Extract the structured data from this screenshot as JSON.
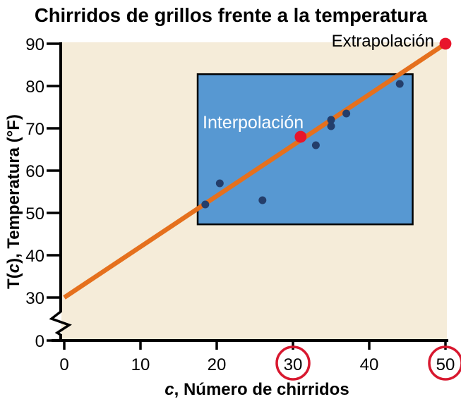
{
  "title": "Chirridos de grillos frente a la temperatura",
  "labels": {
    "interpolation": "Interpolación",
    "extrapolation": "Extrapolación",
    "x_axis_parts": [
      "c",
      ", Número de chirridos"
    ],
    "y_axis_parts": [
      "T(",
      "c",
      "), Temperatura (°F)"
    ]
  },
  "colors": {
    "plot_bg": "#f5ecd9",
    "box_fill": "#5798d2",
    "box_stroke": "#000000",
    "trend_line": "#e5701d",
    "data_point": "#243e6b",
    "highlight_point": "#e8152b",
    "tick_circle": "#d8182f",
    "axis": "#000000",
    "interpolation_label_color": "#ffffff",
    "extrapolation_label_color": "#000000"
  },
  "chart_data": {
    "type": "scatter",
    "title": "Chirridos de grillos frente a la temperatura",
    "xlabel": "c, Número de chirridos",
    "ylabel": "T(c), Temperatura (°F)",
    "xlim": [
      0,
      50
    ],
    "ylim": [
      0,
      90
    ],
    "y_axis_break_between": [
      0,
      30
    ],
    "grid": false,
    "legend": "none",
    "x_ticks": [
      0,
      10,
      20,
      30,
      40,
      50
    ],
    "y_ticks": [
      0,
      30,
      40,
      50,
      60,
      70,
      80,
      90
    ],
    "circled_x_ticks": [
      30,
      50
    ],
    "points": [
      [
        18.5,
        52
      ],
      [
        20.4,
        57
      ],
      [
        26,
        53
      ],
      [
        33,
        66
      ],
      [
        35,
        70.5
      ],
      [
        35,
        72
      ],
      [
        37,
        73.5
      ],
      [
        44,
        80.5
      ]
    ],
    "trend_line": {
      "x1": 0,
      "y1": 30,
      "x2": 50,
      "y2": 90
    },
    "interpolation_point": [
      31,
      68
    ],
    "extrapolation_point": [
      50,
      90
    ],
    "interpolation_box": {
      "x1": 17.5,
      "x2": 45.7,
      "y1": 47.3,
      "y2": 82.8
    }
  }
}
